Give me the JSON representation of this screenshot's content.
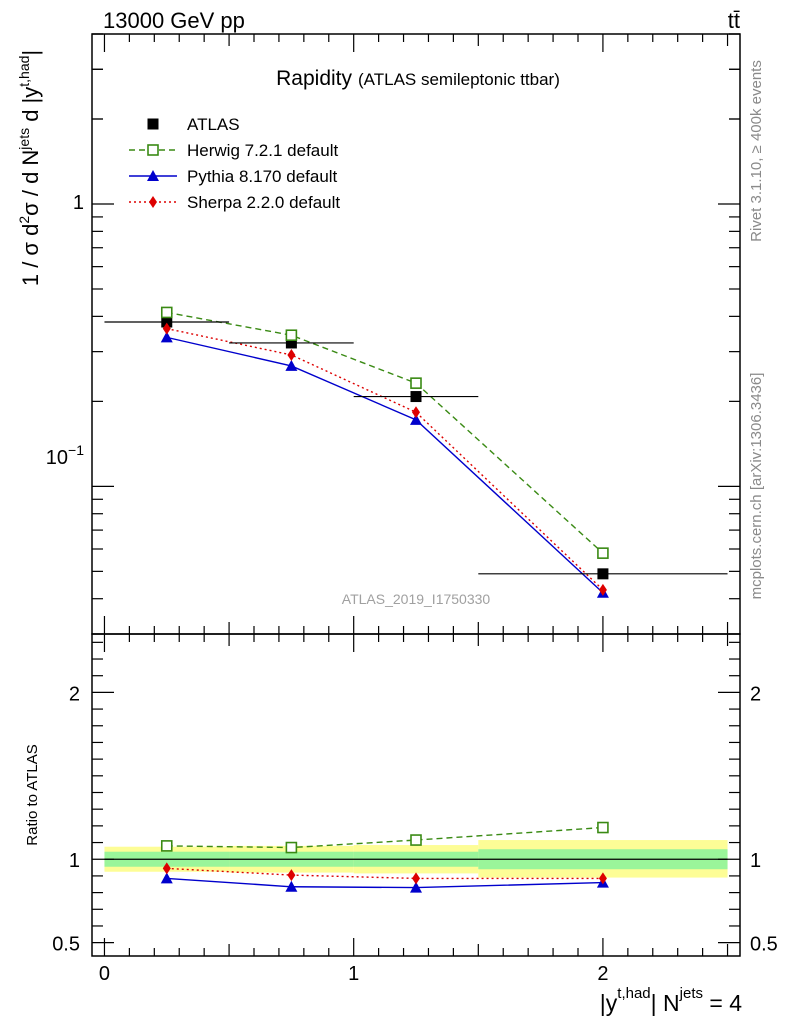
{
  "header": {
    "energy_label": "13000 GeV pp",
    "process_label": "tt̄"
  },
  "side_labels": {
    "rivet": "Rivet 3.1.10, ≥ 400k events",
    "mcplots": "mcplots.cern.ch [arXiv:1306.3436]"
  },
  "chart_data": [
    {
      "type": "line",
      "panel": "main",
      "title": "Rapidity",
      "subtitle": "(ATLAS semileptonic ttbar)",
      "analysis_id": "ATLAS_2019_I1750330",
      "ylabel_prefix": "1 / σ d",
      "ylabel_mid1": "σ / d N",
      "ylabel_sup_jets": "jets",
      "ylabel_mid2": " d |y",
      "ylabel_sup_thad": "t,had",
      "ylabel_end": "|",
      "ylabel_sup_2": "2",
      "yscale": "log",
      "ylim": [
        0.03,
        4.0
      ],
      "xlim": [
        -0.05,
        2.55
      ],
      "ytick_1": "1",
      "ytick_01_base": "10",
      "ytick_01_exp": "−1",
      "legend_position": "top-left",
      "x": [
        0.25,
        0.75,
        1.25,
        2.0
      ],
      "xerr": [
        0.25,
        0.25,
        0.25,
        0.5
      ],
      "series": [
        {
          "name": "ATLAS",
          "color": "#000000",
          "marker": "square-filled",
          "values": [
            0.382,
            0.322,
            0.208,
            0.049
          ]
        },
        {
          "name": "Herwig 7.2.1 default",
          "color": "#3a8a14",
          "marker": "square-open",
          "linestyle": "dashed",
          "values": [
            0.413,
            0.343,
            0.232,
            0.058
          ]
        },
        {
          "name": "Pythia 8.170 default",
          "color": "#0000cc",
          "marker": "triangle",
          "linestyle": "solid",
          "values": [
            0.337,
            0.267,
            0.172,
            0.042
          ]
        },
        {
          "name": "Sherpa 2.2.0 default",
          "color": "#dd0000",
          "marker": "diamond",
          "linestyle": "dotted",
          "values": [
            0.362,
            0.292,
            0.183,
            0.043
          ]
        }
      ]
    },
    {
      "type": "line",
      "panel": "ratio",
      "ylabel": "Ratio to ATLAS",
      "ylim": [
        0.42,
        2.35
      ],
      "xlim": [
        -0.05,
        2.55
      ],
      "yticks": [
        0.5,
        1,
        2
      ],
      "ytick_labels": [
        "0.5",
        "1",
        "2"
      ],
      "xticks": [
        0,
        1,
        2
      ],
      "xtick_labels": [
        "0",
        "1",
        "2"
      ],
      "xlabel_main": "|y",
      "xlabel_sup1": "t,had",
      "xlabel_mid": "| N",
      "xlabel_sup2": "jets",
      "xlabel_end": " = 4",
      "bands": {
        "bins": [
          [
            0,
            0.5
          ],
          [
            0.5,
            1.0
          ],
          [
            1.0,
            1.5
          ],
          [
            1.5,
            2.5
          ]
        ],
        "stat_lo": [
          0.955,
          0.955,
          0.955,
          0.94
        ],
        "stat_hi": [
          1.045,
          1.045,
          1.045,
          1.06
        ],
        "total_lo": [
          0.925,
          0.92,
          0.915,
          0.89
        ],
        "total_hi": [
          1.075,
          1.08,
          1.085,
          1.115
        ],
        "stat_color": "#9af59a",
        "total_color": "#fdfd96"
      },
      "x": [
        0.25,
        0.75,
        1.25,
        2.0
      ],
      "series": [
        {
          "name": "Herwig 7.2.1 default",
          "color": "#3a8a14",
          "marker": "square-open",
          "linestyle": "dashed",
          "values": [
            1.08,
            1.07,
            1.115,
            1.19
          ]
        },
        {
          "name": "Pythia 8.170 default",
          "color": "#0000cc",
          "marker": "triangle",
          "linestyle": "solid",
          "values": [
            0.885,
            0.835,
            0.83,
            0.86
          ]
        },
        {
          "name": "Sherpa 2.2.0 default",
          "color": "#dd0000",
          "marker": "diamond",
          "linestyle": "dotted",
          "values": [
            0.945,
            0.905,
            0.885,
            0.885
          ]
        }
      ]
    }
  ]
}
